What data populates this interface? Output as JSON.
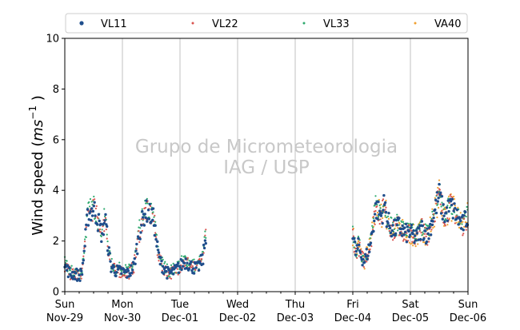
{
  "chart_data": {
    "type": "scatter",
    "title": "",
    "xlabel": "",
    "ylabel_main": "Wind speed (",
    "ylabel_sup": "ms",
    "ylabel_exp": "−1",
    "ylabel_close": " )",
    "ylim": [
      0,
      10
    ],
    "yticks": [
      0,
      2,
      4,
      6,
      8,
      10
    ],
    "xlim": [
      "2020-11-29",
      "2020-12-06"
    ],
    "xticks": [
      {
        "day": "Sun",
        "date": "Nov-29"
      },
      {
        "day": "Mon",
        "date": "Nov-30"
      },
      {
        "day": "Tue",
        "date": "Dec-01"
      },
      {
        "day": "Wed",
        "date": "Dec-02"
      },
      {
        "day": "Thu",
        "date": "Dec-03"
      },
      {
        "day": "Fri",
        "date": "Dec-04"
      },
      {
        "day": "Sat",
        "date": "Dec-05"
      },
      {
        "day": "Sun",
        "date": "Dec-06"
      }
    ],
    "grid": "vertical",
    "legend_position": "top",
    "watermark": [
      "Grupo de Micrometeorologia",
      "IAG / USP"
    ],
    "series": [
      {
        "name": "VL11",
        "color": "#1f4e8c",
        "marker": "large-dot"
      },
      {
        "name": "VL22",
        "color": "#d9534f",
        "marker": "dot"
      },
      {
        "name": "VL33",
        "color": "#2eaa6e",
        "marker": "dot"
      },
      {
        "name": "VA40",
        "color": "#f0a030",
        "marker": "dot"
      }
    ],
    "time_series_profile": {
      "x_unit": "days since Nov-29 00:00",
      "x": [
        0.0,
        0.1,
        0.2,
        0.25,
        0.3,
        0.4,
        0.5,
        0.55,
        0.6,
        0.65,
        0.7,
        0.75,
        0.8,
        0.9,
        1.0,
        1.1,
        1.2,
        1.3,
        1.4,
        1.5,
        1.55,
        1.6,
        1.65,
        1.7,
        1.8,
        1.9,
        2.0,
        2.1,
        2.2,
        2.3,
        2.4,
        2.45,
        5.0,
        5.05,
        5.1,
        5.15,
        5.2,
        5.3,
        5.4,
        5.5,
        5.55,
        5.6,
        5.7,
        5.8,
        5.9,
        6.0,
        6.1,
        6.2,
        6.3,
        6.4,
        6.5,
        6.55,
        6.6,
        6.7,
        6.8,
        6.9,
        7.0
      ],
      "y": [
        1.0,
        0.7,
        0.7,
        0.6,
        0.8,
        3.0,
        3.3,
        3.0,
        2.6,
        2.2,
        3.0,
        1.8,
        1.0,
        0.8,
        0.8,
        0.7,
        1.0,
        2.4,
        3.2,
        3.0,
        2.8,
        1.8,
        1.2,
        1.0,
        0.7,
        0.8,
        1.0,
        1.2,
        1.0,
        0.9,
        1.3,
        2.3,
        2.3,
        1.5,
        1.8,
        1.4,
        1.2,
        1.8,
        3.3,
        3.0,
        3.5,
        2.8,
        2.4,
        2.6,
        2.3,
        2.3,
        2.1,
        2.5,
        2.2,
        3.0,
        3.8,
        3.3,
        3.0,
        3.4,
        3.0,
        2.6,
        3.0
      ]
    }
  }
}
